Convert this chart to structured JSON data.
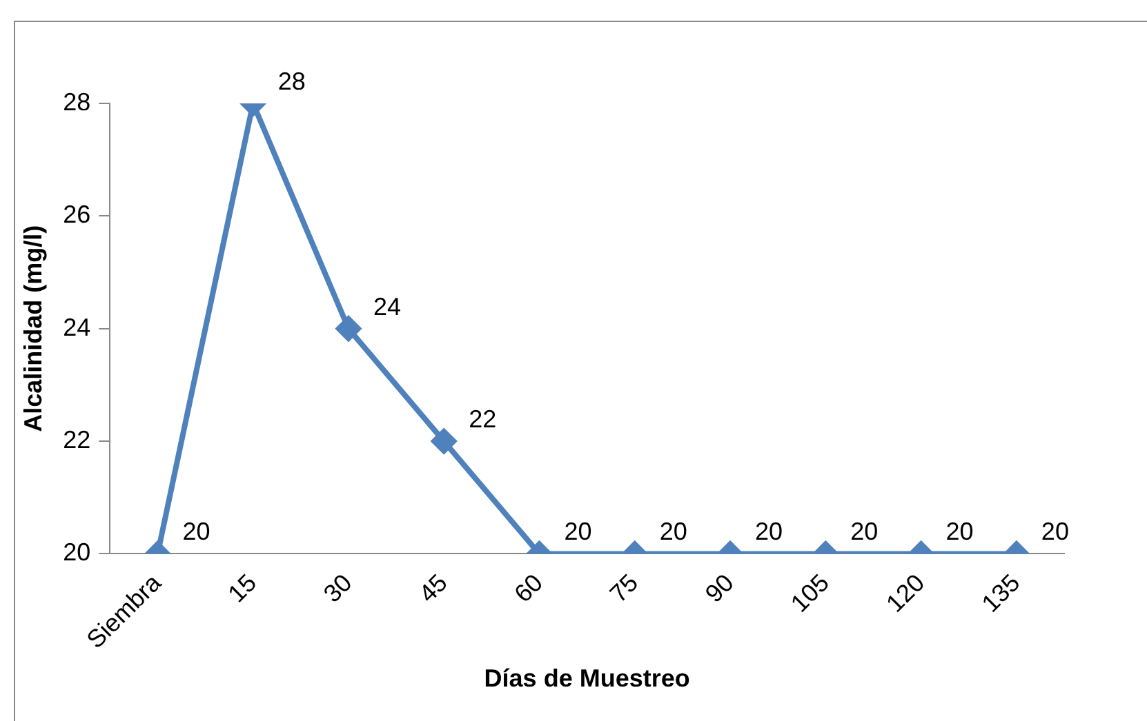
{
  "chart_data": {
    "type": "line",
    "xlabel": "Días de Muestreo",
    "ylabel": "Alcalinidad (mg/l)",
    "categories": [
      "Siembra",
      "15",
      "30",
      "45",
      "60",
      "75",
      "90",
      "105",
      "120",
      "135"
    ],
    "series": [
      {
        "color": "#4f81bd",
        "values": [
          20,
          28,
          24,
          22,
          20,
          20,
          20,
          20,
          20,
          20
        ]
      }
    ],
    "ylim": [
      20,
      28
    ],
    "yticks": [
      20,
      22,
      24,
      26,
      28
    ],
    "grid": false,
    "legend": false,
    "marker": "diamond",
    "line_style": "solid",
    "data_labels": true
  }
}
